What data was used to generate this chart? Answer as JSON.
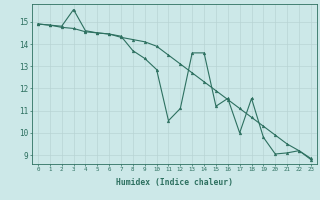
{
  "xlabel": "Humidex (Indice chaleur)",
  "ylabel": "",
  "bg_color": "#cce8e8",
  "grid_color": "#b8d4d4",
  "line_color": "#2d7060",
  "xlim": [
    -0.5,
    23.5
  ],
  "ylim": [
    8.6,
    15.8
  ],
  "xticks": [
    0,
    1,
    2,
    3,
    4,
    5,
    6,
    7,
    8,
    9,
    10,
    11,
    12,
    13,
    14,
    15,
    16,
    17,
    18,
    19,
    20,
    21,
    22,
    23
  ],
  "yticks": [
    9,
    10,
    11,
    12,
    13,
    14,
    15
  ],
  "line1_x": [
    0,
    1,
    2,
    3,
    4,
    5,
    6,
    7,
    8,
    9,
    10,
    11,
    12,
    13,
    14,
    15,
    16,
    17,
    18,
    19,
    20,
    21,
    22,
    23
  ],
  "line1_y": [
    14.9,
    14.85,
    14.8,
    15.55,
    14.6,
    14.5,
    14.45,
    14.35,
    13.7,
    13.35,
    12.85,
    10.55,
    11.1,
    13.6,
    13.6,
    11.2,
    11.55,
    10.0,
    11.55,
    9.8,
    9.05,
    9.1,
    9.2,
    8.8
  ],
  "line2_x": [
    0,
    1,
    2,
    3,
    4,
    5,
    6,
    7,
    8,
    9,
    10,
    11,
    12,
    13,
    14,
    15,
    16,
    17,
    18,
    19,
    20,
    21,
    22,
    23
  ],
  "line2_y": [
    14.9,
    14.85,
    14.75,
    14.7,
    14.55,
    14.5,
    14.45,
    14.3,
    14.2,
    14.1,
    13.9,
    13.5,
    13.1,
    12.7,
    12.3,
    11.9,
    11.5,
    11.1,
    10.7,
    10.3,
    9.9,
    9.5,
    9.2,
    8.85
  ]
}
